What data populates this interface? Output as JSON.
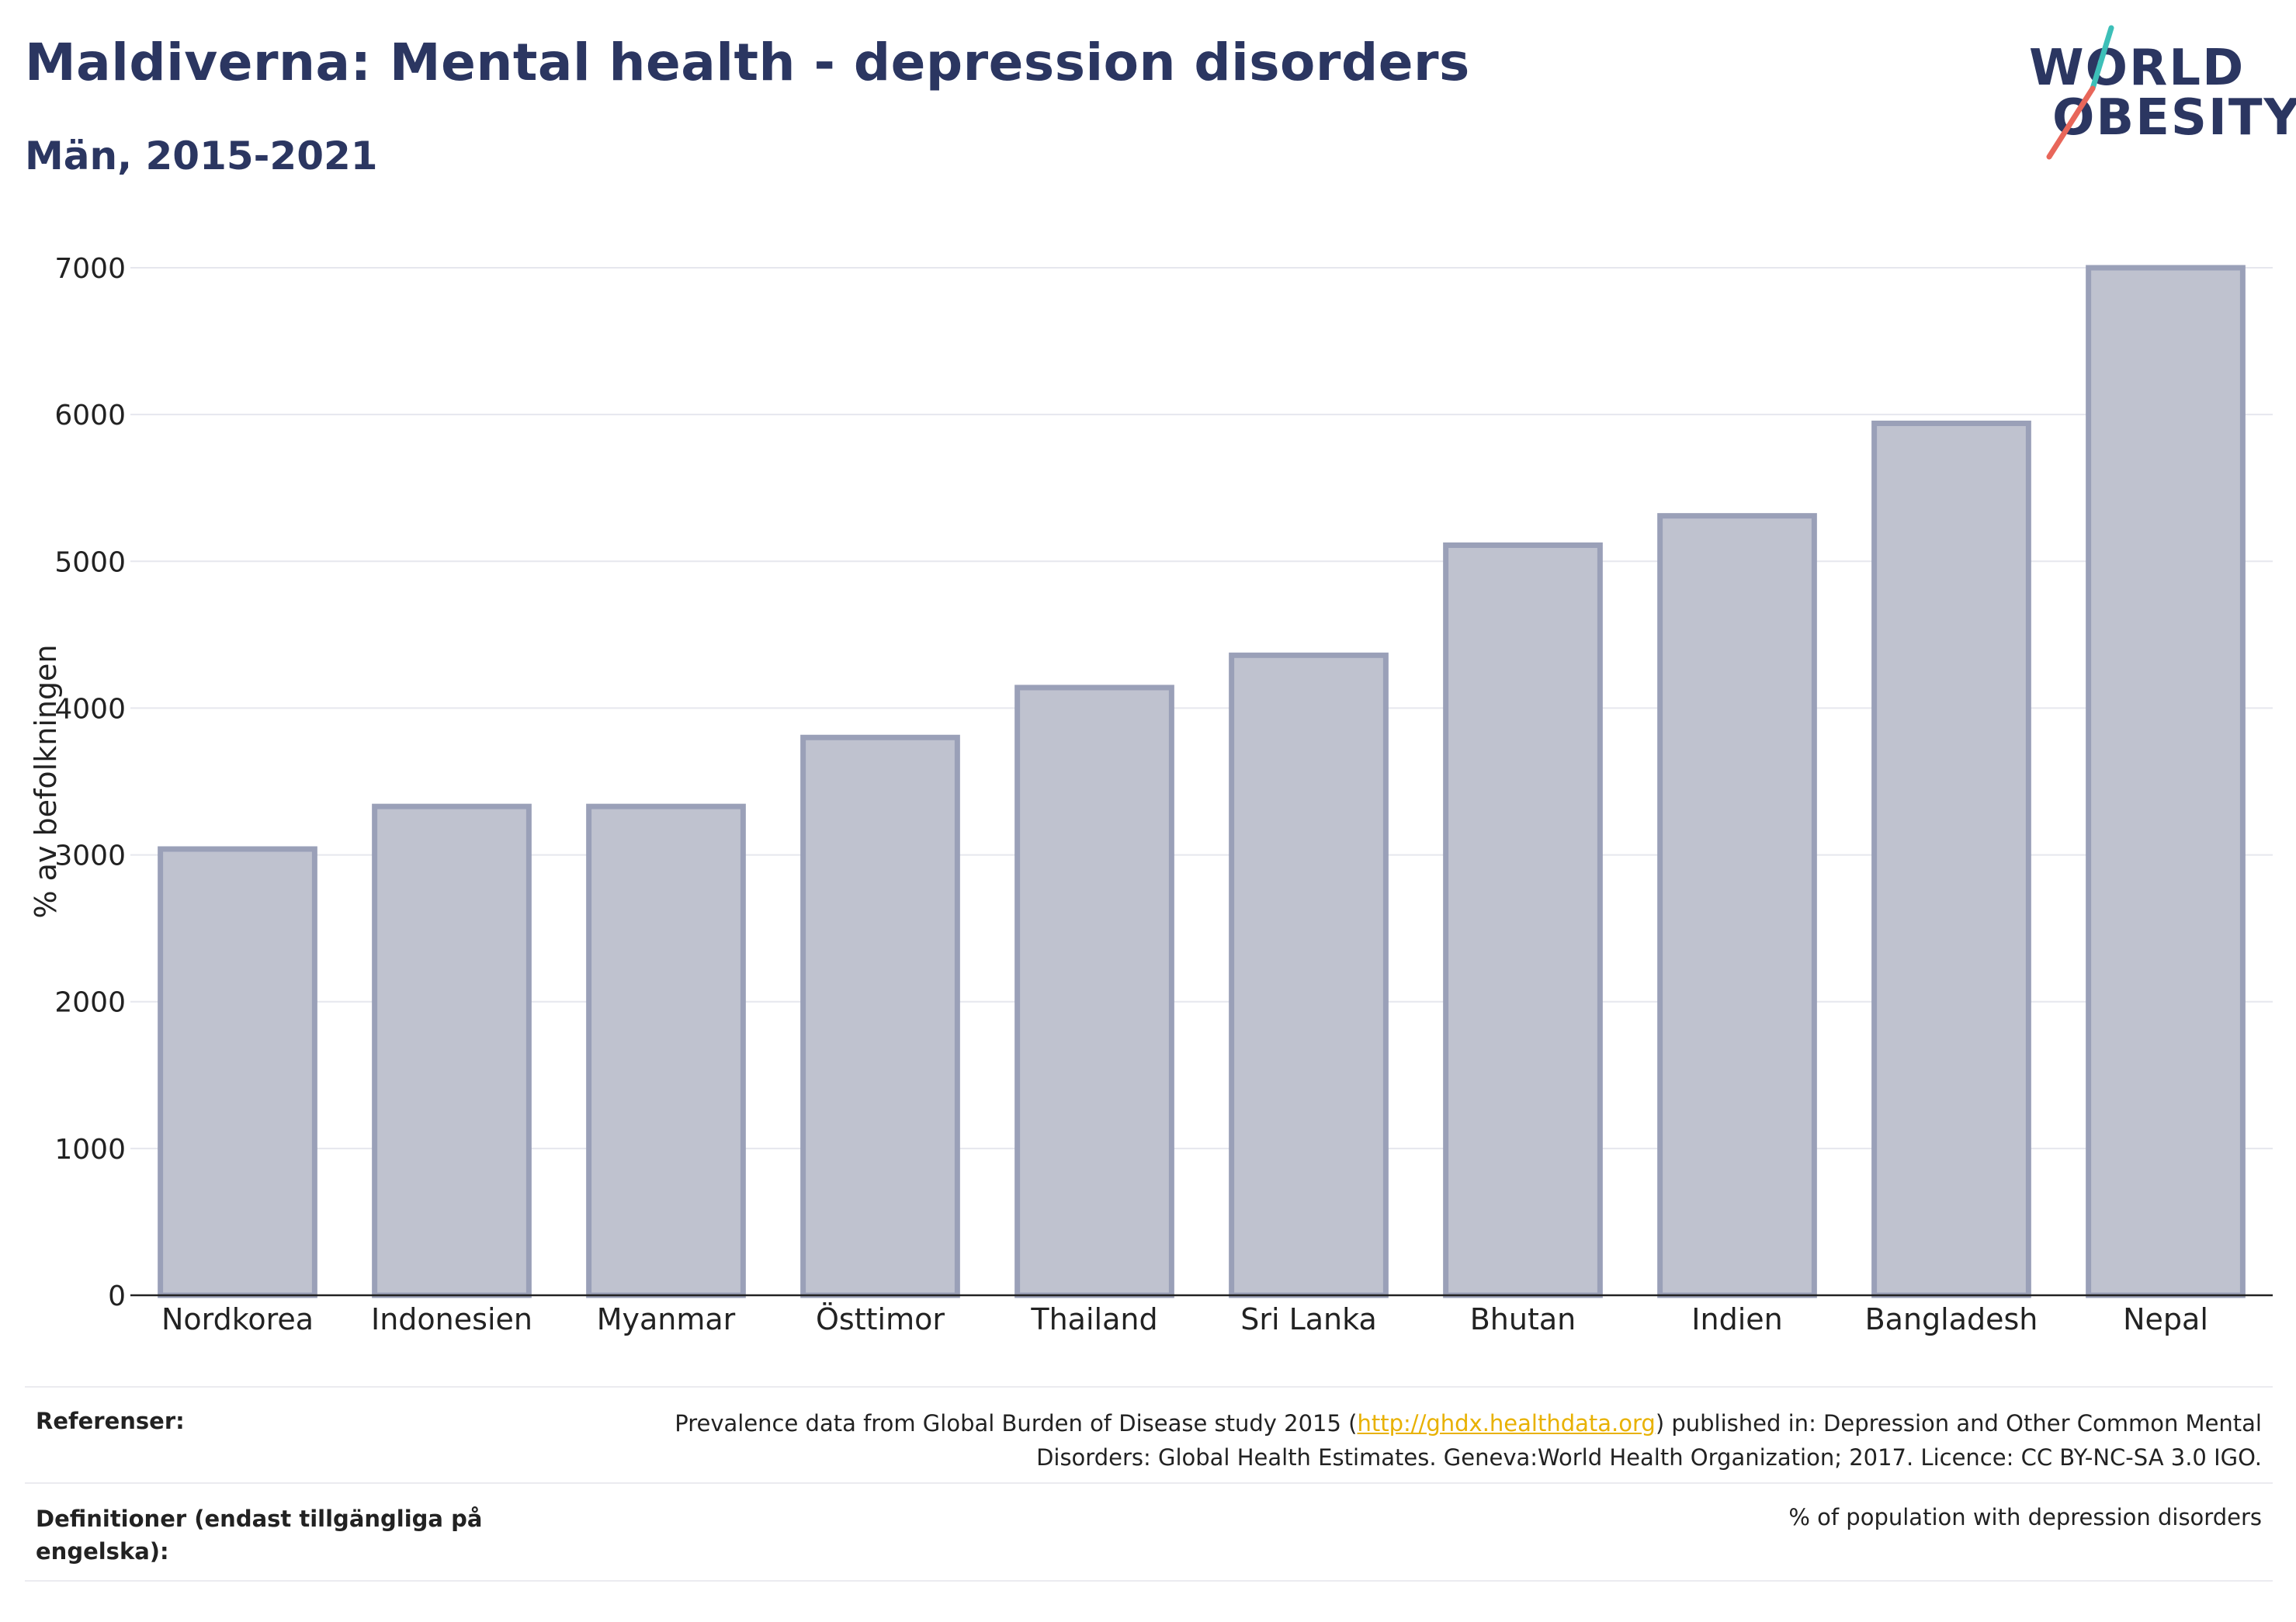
{
  "header": {
    "title": "Maldiverna: Mental health - depression disorders",
    "subtitle": "Män, 2015-2021"
  },
  "logo": {
    "line1": "WORLD",
    "line2": "OBESITY",
    "slash_colors": [
      "#3dbfb8",
      "#e8665a"
    ]
  },
  "chart_data": {
    "type": "bar",
    "categories": [
      "Nordkorea",
      "Indonesien",
      "Myanmar",
      "Östtimor",
      "Thailand",
      "Sri Lanka",
      "Bhutan",
      "Indien",
      "Bangladesh",
      "Nepal"
    ],
    "values": [
      3040,
      3330,
      3330,
      3800,
      4140,
      4360,
      5110,
      5310,
      5940,
      7000
    ],
    "ylabel": "% av befolkningen",
    "xlabel": "",
    "ylim": [
      0,
      7000
    ],
    "yticks": [
      0,
      1000,
      2000,
      3000,
      4000,
      5000,
      6000,
      7000
    ],
    "grid": true,
    "bar_fill": "#bfc2cf",
    "bar_stroke": "#9aa0b8"
  },
  "footer": {
    "references_label": "Referenser:",
    "references_text_before": "Prevalence data from Global Burden of Disease study 2015 (",
    "references_link": "http://ghdx.healthdata.org",
    "references_text_after": ") published in: Depression and Other Common Mental Disorders: Global Health Estimates. Geneva:World Health Organization; 2017. Licence: CC BY-NC-SA 3.0 IGO.",
    "definitions_label": "Definitioner (endast tillgängliga på engelska):",
    "definitions_text": "% of population with depression disorders"
  }
}
